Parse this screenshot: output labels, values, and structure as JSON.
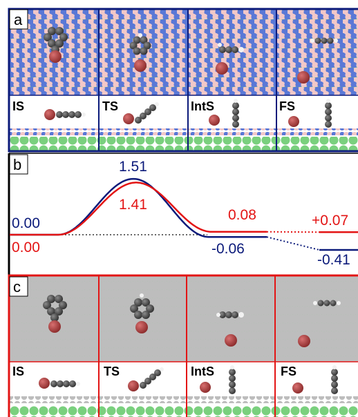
{
  "panels": {
    "a": {
      "letter": "a",
      "frame_color": "#0b1a7a",
      "states": [
        "IS",
        "TS",
        "IntS",
        "FS"
      ],
      "surface": "hBN"
    },
    "b": {
      "letter": "b",
      "axis_color": "#000000"
    },
    "c": {
      "letter": "c",
      "frame_color": "#e31414",
      "states": [
        "IS",
        "TS",
        "IntS",
        "FS"
      ],
      "surface": "graphene"
    }
  },
  "chart_data": {
    "type": "line",
    "series": [
      {
        "color": "#0b1a7a",
        "points": [
          {
            "state": "IS",
            "energy": 0.0,
            "label": "0.00"
          },
          {
            "state": "TS",
            "energy": 1.51,
            "label": "1.51"
          },
          {
            "state": "IntS",
            "energy": -0.06,
            "label": "-0.06"
          },
          {
            "state": "FS",
            "energy": -0.41,
            "label": "-0.41"
          }
        ]
      },
      {
        "color": "#e31414",
        "points": [
          {
            "state": "IS",
            "energy": 0.0,
            "label": "0.00"
          },
          {
            "state": "TS",
            "energy": 1.41,
            "label": "1.41"
          },
          {
            "state": "IntS",
            "energy": 0.08,
            "label": "0.08"
          },
          {
            "state": "FS",
            "energy": 0.07,
            "label": "+0.07"
          }
        ]
      }
    ],
    "reference_line": {
      "energy": 0.0,
      "style": "dotted"
    }
  },
  "colors": {
    "boron_pink": "#f2c8c8",
    "nitrogen_blue": "#5a78d6",
    "carbon_grey": "#bdbdbd",
    "substrate_green": "#7ad07e",
    "molecule_dark": "#4a4a4a",
    "halogen_red": "#a83a3a",
    "hydrogen_white": "#f2f2f2"
  }
}
